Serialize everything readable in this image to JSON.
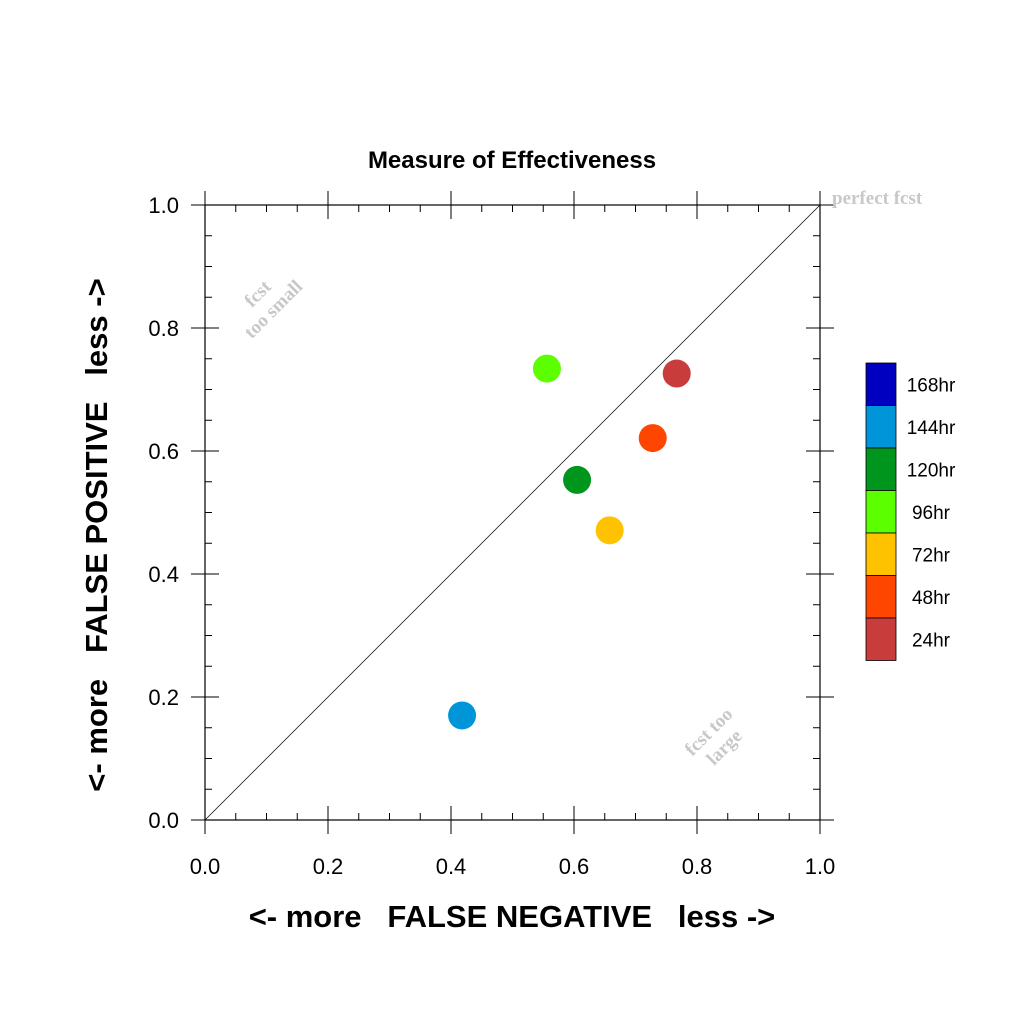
{
  "chart_data": {
    "type": "scatter",
    "title": "Measure of Effectiveness",
    "xlabel": "<- more   FALSE NEGATIVE   less ->",
    "ylabel": "<- more   FALSE POSITIVE   less ->",
    "xlim": [
      0.0,
      1.0
    ],
    "ylim": [
      0.0,
      1.0
    ],
    "xticks": [
      "0.0",
      "0.2",
      "0.4",
      "0.6",
      "0.8",
      "1.0"
    ],
    "yticks": [
      "0.0",
      "0.2",
      "0.4",
      "0.6",
      "0.8",
      "1.0"
    ],
    "grid": false,
    "reference_line": {
      "from": [
        0,
        0
      ],
      "to": [
        1,
        1
      ]
    },
    "annotations": {
      "perfect": "perfect fcst",
      "small_line1": "fcst",
      "small_line2": "too small",
      "large_line1": "fcst too",
      "large_line2": "large"
    },
    "legend_position": "right",
    "series": [
      {
        "name": "168hr",
        "color": "#0000c0",
        "x": null,
        "y": null
      },
      {
        "name": "144hr",
        "color": "#0095d8",
        "x": 0.418,
        "y": 0.17
      },
      {
        "name": "120hr",
        "color": "#00961e",
        "x": 0.605,
        "y": 0.553
      },
      {
        "name": "96hr",
        "color": "#5cff00",
        "x": 0.556,
        "y": 0.734
      },
      {
        "name": "72hr",
        "color": "#ffc200",
        "x": 0.658,
        "y": 0.471
      },
      {
        "name": "48hr",
        "color": "#ff4600",
        "x": 0.728,
        "y": 0.621
      },
      {
        "name": "24hr",
        "color": "#c83c3c",
        "x": 0.767,
        "y": 0.726
      }
    ]
  }
}
